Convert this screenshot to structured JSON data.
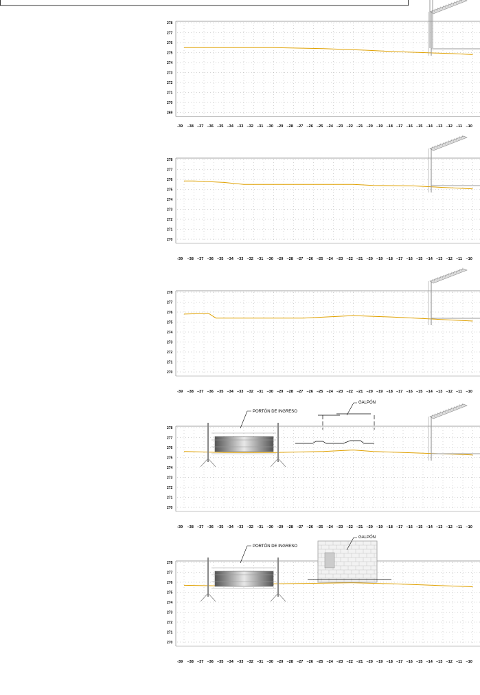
{
  "title_box": {
    "text": ""
  },
  "panels": [
    {
      "ylabels": [
        "278",
        "277",
        "276",
        "275",
        "274",
        "273",
        "272",
        "271",
        "270",
        "269"
      ],
      "terrain": [
        [
          -39,
          275.5
        ],
        [
          -35,
          275.5
        ],
        [
          -30,
          275.5
        ],
        [
          -25,
          275.4
        ],
        [
          -21,
          275.25
        ],
        [
          -18,
          275.1
        ],
        [
          -15,
          275.0
        ],
        [
          -12,
          274.9
        ],
        [
          -10,
          274.8
        ]
      ]
    },
    {
      "ylabels": [
        "278",
        "277",
        "276",
        "275",
        "274",
        "273",
        "272",
        "271",
        "270"
      ],
      "terrain": [
        [
          -39,
          275.85
        ],
        [
          -38,
          275.85
        ],
        [
          -37,
          275.8
        ],
        [
          -35,
          275.7
        ],
        [
          -33,
          275.5
        ],
        [
          -30,
          275.5
        ],
        [
          -25,
          275.5
        ],
        [
          -22,
          275.5
        ],
        [
          -20,
          275.4
        ],
        [
          -16,
          275.35
        ],
        [
          -13,
          275.2
        ],
        [
          -10,
          275.05
        ]
      ]
    },
    {
      "ylabels": [
        "278",
        "277",
        "276",
        "275",
        "274",
        "273",
        "272",
        "271",
        "270"
      ],
      "terrain": [
        [
          -39,
          275.8
        ],
        [
          -37.5,
          275.85
        ],
        [
          -36.5,
          275.85
        ],
        [
          -35.8,
          275.4
        ],
        [
          -30,
          275.4
        ],
        [
          -27,
          275.4
        ],
        [
          -22,
          275.65
        ],
        [
          -18,
          275.5
        ],
        [
          -15,
          275.35
        ],
        [
          -12,
          275.2
        ],
        [
          -10,
          275.1
        ]
      ]
    },
    {
      "ylabels": [
        "278",
        "277",
        "276",
        "275",
        "274",
        "273",
        "272",
        "271",
        "270"
      ],
      "terrain": [
        [
          -39,
          275.6
        ],
        [
          -35,
          275.5
        ],
        [
          -30,
          275.5
        ],
        [
          -25,
          275.6
        ],
        [
          -22,
          275.75
        ],
        [
          -20,
          275.6
        ],
        [
          -17,
          275.5
        ],
        [
          -14,
          275.4
        ],
        [
          -11,
          275.3
        ],
        [
          -10,
          275.25
        ]
      ],
      "annotations": [
        "PORTÓN DE INGRESO",
        "GALPÓN"
      ]
    },
    {
      "ylabels": [
        "278",
        "277",
        "276",
        "275",
        "274",
        "273",
        "272",
        "271",
        "270"
      ],
      "terrain": [
        [
          -39,
          275.7
        ],
        [
          -36,
          275.65
        ],
        [
          -33,
          275.75
        ],
        [
          -30,
          275.85
        ],
        [
          -26,
          275.9
        ],
        [
          -22,
          275.95
        ],
        [
          -18,
          275.85
        ],
        [
          -14,
          275.7
        ],
        [
          -10,
          275.55
        ]
      ],
      "annotations": [
        "PORTÓN DE INGRESO",
        "GALPÓN"
      ]
    }
  ],
  "xaxis": [
    "-39",
    "38",
    "37",
    "36",
    "35",
    "34",
    "33",
    "32",
    "31",
    "30",
    "29",
    "28",
    "27",
    "26",
    "25",
    "24",
    "23",
    "22",
    "21",
    "20",
    "19",
    "18",
    "17",
    "16",
    "15",
    "14",
    "13",
    "12",
    "11",
    "10"
  ],
  "colors": {
    "terrain": "#E0A100",
    "grid": "#aaaaaa",
    "frame": "#888888",
    "ink": "#000000"
  }
}
